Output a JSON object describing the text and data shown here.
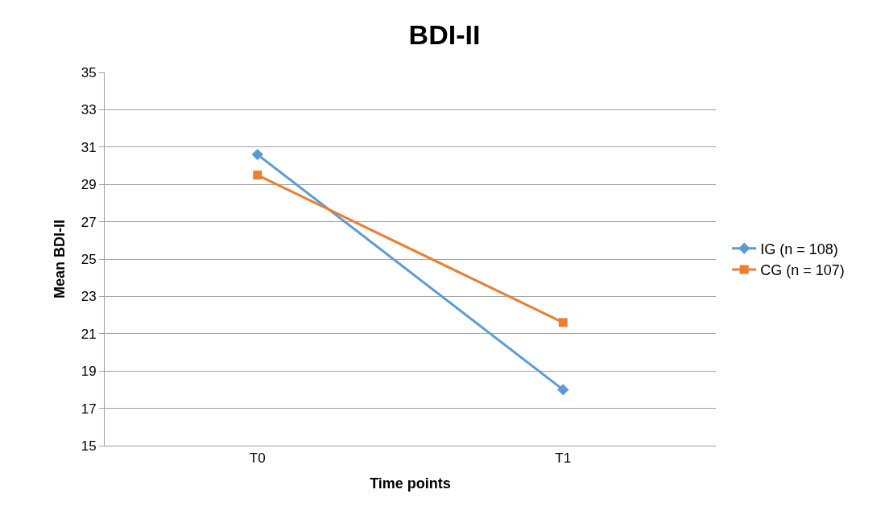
{
  "chart_data": {
    "type": "line",
    "title": "BDI-II",
    "xlabel": "Time points",
    "ylabel": "Mean BDI-II",
    "categories": [
      "T0",
      "T1"
    ],
    "series": [
      {
        "name": "IG (n = 108)",
        "color": "#5b9bd5",
        "marker": "diamond",
        "values": [
          30.6,
          18.0
        ]
      },
      {
        "name": "CG (n = 107)",
        "color": "#ed7d31",
        "marker": "square",
        "values": [
          29.5,
          21.6
        ]
      }
    ],
    "ylim": [
      15,
      35
    ],
    "yticks": [
      15,
      17,
      19,
      21,
      23,
      25,
      27,
      29,
      31,
      33,
      35
    ],
    "grid": "y",
    "legend": "right",
    "line_style": "solid"
  }
}
